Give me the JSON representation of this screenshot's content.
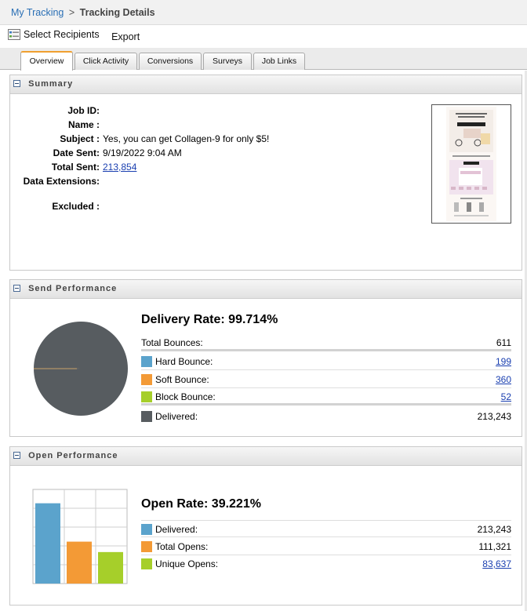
{
  "breadcrumb": {
    "parent": "My Tracking",
    "separator": ">",
    "current": "Tracking Details"
  },
  "toolbar": {
    "select_recipients": "Select Recipients",
    "export": "Export"
  },
  "tabs": [
    {
      "label": "Overview",
      "active": true
    },
    {
      "label": "Click Activity",
      "active": false
    },
    {
      "label": "Conversions",
      "active": false
    },
    {
      "label": "Surveys",
      "active": false
    },
    {
      "label": "Job Links",
      "active": false
    }
  ],
  "summary": {
    "title": "Summary",
    "job_id_label": "Job ID:",
    "job_id": "",
    "name_label": "Name :",
    "name": "",
    "subject_label": "Subject :",
    "subject": "Yes, you can get Collagen-9 for only $5!",
    "date_sent_label": "Date Sent:",
    "date_sent": "9/19/2022 9:04 AM",
    "total_sent_label": "Total Sent:",
    "total_sent": "213,854",
    "data_extensions_label": "Data Extensions:",
    "data_extensions": "",
    "excluded_label": "Excluded :",
    "excluded": ""
  },
  "send_performance": {
    "title": "Send Performance",
    "rate_label": "Delivery Rate: 99.714%",
    "total_bounces_label": "Total Bounces:",
    "total_bounces": "611",
    "hard_bounce_label": "Hard Bounce:",
    "hard_bounce": "199",
    "soft_bounce_label": "Soft Bounce:",
    "soft_bounce": "360",
    "block_bounce_label": "Block Bounce:",
    "block_bounce": "52",
    "delivered_label": "Delivered:",
    "delivered": "213,243",
    "colors": {
      "hard": "#5ba3cc",
      "soft": "#f39a36",
      "block": "#a6cf2a",
      "delivered": "#575c60"
    }
  },
  "open_performance": {
    "title": "Open Performance",
    "rate_label": "Open Rate: 39.221%",
    "delivered_label": "Delivered:",
    "delivered": "213,243",
    "total_opens_label": "Total Opens:",
    "total_opens": "111,321",
    "unique_opens_label": "Unique Opens:",
    "unique_opens": "83,637",
    "colors": {
      "delivered": "#5ba3cc",
      "total": "#f39a36",
      "unique": "#a6cf2a"
    }
  },
  "chart_data": [
    {
      "type": "pie",
      "categories": [
        "Delivered",
        "Hard Bounce",
        "Soft Bounce",
        "Block Bounce"
      ],
      "values": [
        213243,
        199,
        360,
        52
      ]
    },
    {
      "type": "bar",
      "categories": [
        "Delivered",
        "Total Opens",
        "Unique Opens"
      ],
      "values": [
        213243,
        111321,
        83637
      ],
      "ylim": [
        0,
        250000
      ],
      "grid": true
    }
  ]
}
